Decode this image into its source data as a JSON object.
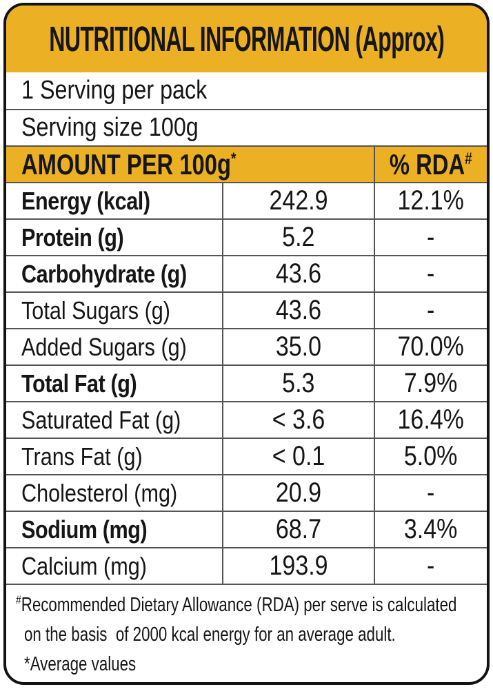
{
  "header": {
    "title": "NUTRITIONAL INFORMATION (Approx)"
  },
  "serving": {
    "per_pack": "1 Serving per pack",
    "size": "Serving size 100g"
  },
  "table": {
    "amount_header_text": "AMOUNT PER 100g",
    "amount_header_sup": "*",
    "rda_header_text": "% RDA",
    "rda_header_sup": "#",
    "rows": [
      {
        "label": "Energy (kcal)",
        "bold": true,
        "amount": "242.9",
        "rda": "12.1%"
      },
      {
        "label": "Protein (g)",
        "bold": true,
        "amount": "5.2",
        "rda": "-"
      },
      {
        "label": "Carbohydrate (g)",
        "bold": true,
        "amount": "43.6",
        "rda": "-"
      },
      {
        "label": "Total Sugars (g)",
        "bold": false,
        "amount": "43.6",
        "rda": "-"
      },
      {
        "label": "Added Sugars (g)",
        "bold": false,
        "amount": "35.0",
        "rda": "70.0%"
      },
      {
        "label": "Total Fat (g)",
        "bold": true,
        "amount": "5.3",
        "rda": "7.9%"
      },
      {
        "label": "Saturated Fat (g)",
        "bold": false,
        "amount": "< 3.6",
        "rda": "16.4%"
      },
      {
        "label": "Trans Fat (g)",
        "bold": false,
        "amount": "< 0.1",
        "rda": "5.0%"
      },
      {
        "label": "Cholesterol (mg)",
        "bold": false,
        "amount": "20.9",
        "rda": "-"
      },
      {
        "label": "Sodium (mg)",
        "bold": true,
        "amount": "68.7",
        "rda": "3.4%"
      },
      {
        "label": "Calcium (mg)",
        "bold": false,
        "amount": "193.9",
        "rda": "-"
      }
    ]
  },
  "footnotes": {
    "sup": "#",
    "line1": "Recommended Dietary Allowance (RDA) per serve is calculated",
    "line2": "on the basis  of 2000 kcal energy for an average adult.",
    "line3": "*Average values"
  },
  "colors": {
    "accent_yellow": "#EBB024",
    "grid_line": "#555555",
    "text": "#161616"
  }
}
